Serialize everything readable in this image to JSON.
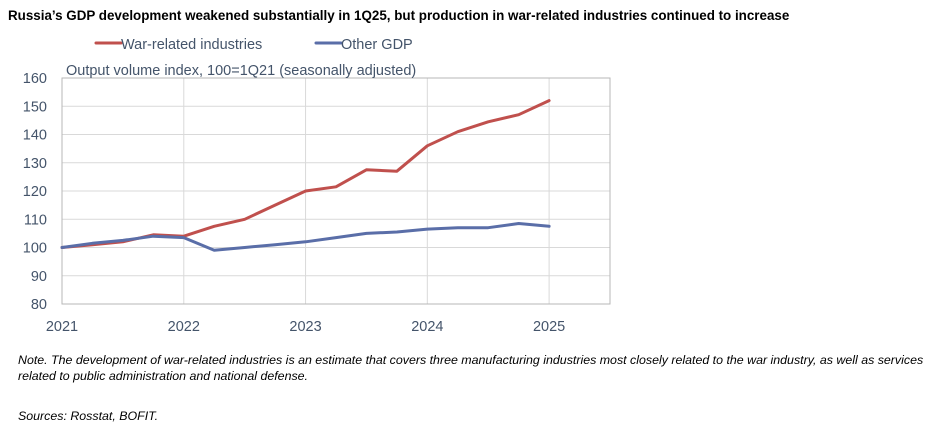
{
  "chart_data": {
    "type": "line",
    "title": "Russia’s GDP development weakened substantially in 1Q25, but production in war-related industries continued to increase",
    "subtitle": "Output volume index, 100=1Q21 (seasonally adjusted)",
    "xlabel": "",
    "ylabel": "",
    "x": [
      2021.0,
      2021.25,
      2021.5,
      2021.75,
      2022.0,
      2022.25,
      2022.5,
      2022.75,
      2023.0,
      2023.25,
      2023.5,
      2023.75,
      2024.0,
      2024.25,
      2024.5,
      2024.75,
      2025.0
    ],
    "xticks": [
      2021,
      2022,
      2023,
      2024,
      2025
    ],
    "xtick_labels": [
      "2021",
      "2022",
      "2023",
      "2024",
      "2025"
    ],
    "xlim": [
      2021,
      2025.5
    ],
    "ylim": [
      80,
      160
    ],
    "yticks": [
      80,
      90,
      100,
      110,
      120,
      130,
      140,
      150,
      160
    ],
    "ytick_labels": [
      "80",
      "90",
      "100",
      "110",
      "120",
      "130",
      "140",
      "150",
      "160"
    ],
    "grid": true,
    "legend_position": "top-left",
    "series": [
      {
        "name": "War-related industries",
        "color": "#C0504D",
        "values": [
          100.0,
          101.0,
          102.0,
          104.5,
          104.0,
          107.5,
          110.0,
          115.0,
          120.0,
          121.5,
          127.5,
          127.0,
          136.0,
          141.0,
          144.5,
          147.0,
          152.0
        ]
      },
      {
        "name": "Other GDP",
        "color": "#5A6EA8",
        "values": [
          100.0,
          101.5,
          102.5,
          104.0,
          103.5,
          99.0,
          100.0,
          101.0,
          102.0,
          103.5,
          105.0,
          105.5,
          106.5,
          107.0,
          107.0,
          108.5,
          107.5
        ]
      }
    ]
  },
  "footnotes": {
    "note": "Note. The development of war-related industries is an estimate that covers three manufacturing industries most closely related to the war industry, as well as services related to public administration and national defense.",
    "sources": "Sources: Rosstat, BOFIT."
  }
}
